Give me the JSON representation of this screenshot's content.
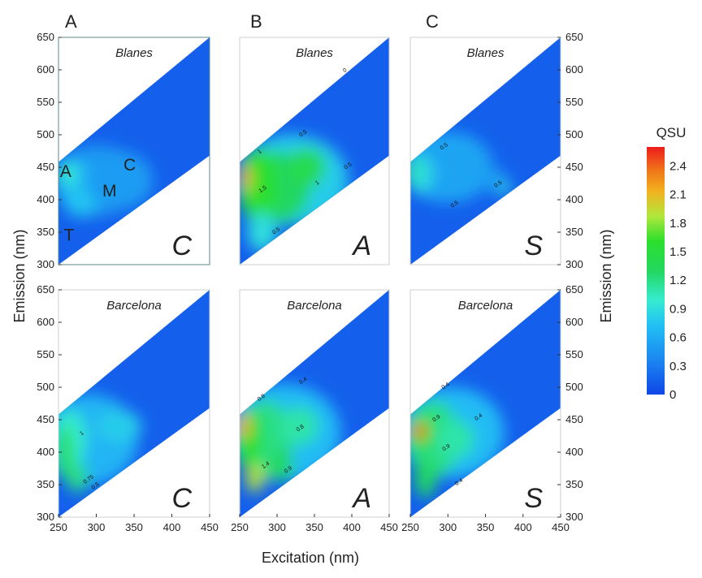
{
  "chart_data": {
    "type": "heatmap",
    "description_of_axes": {
      "xlabel": "Excitation (nm)",
      "ylabel": "Emission (nm)",
      "xlim": [
        250,
        450
      ],
      "ylim": [
        300,
        650
      ],
      "x_ticks": [
        "250",
        "300",
        "350",
        "400",
        "450"
      ],
      "y_ticks": [
        "300",
        "350",
        "400",
        "450",
        "500",
        "550",
        "600",
        "650"
      ]
    },
    "colorbar": {
      "title": "QSU",
      "range": [
        0,
        2.6
      ],
      "ticks": [
        "2.4",
        "2.1",
        "1.8",
        "1.5",
        "1.2",
        "0.9",
        "0.6",
        "0.3",
        "0"
      ]
    },
    "column_labels": [
      "A",
      "B",
      "C"
    ],
    "panels": [
      {
        "column": "A",
        "site": "Blanes",
        "stat_letter": "C",
        "peak_value": 1.0,
        "peak_labels": [
          {
            "text": "A",
            "ex": 252,
            "em": 435
          },
          {
            "text": "C",
            "ex": 336,
            "em": 445
          },
          {
            "text": "M",
            "ex": 308,
            "em": 405
          },
          {
            "text": "T",
            "ex": 257,
            "em": 337
          }
        ],
        "contour_labels": []
      },
      {
        "column": "B",
        "site": "Blanes",
        "stat_letter": "A",
        "peak_value": 2.4,
        "contour_labels": [
          {
            "text": "0",
            "ex": 392,
            "em": 597
          },
          {
            "text": "0.5",
            "ex": 336,
            "em": 500
          },
          {
            "text": "1",
            "ex": 278,
            "em": 472
          },
          {
            "text": "0.5",
            "ex": 396,
            "em": 450
          },
          {
            "text": "1.5",
            "ex": 282,
            "em": 414
          },
          {
            "text": "1",
            "ex": 355,
            "em": 424
          },
          {
            "text": "0.5",
            "ex": 300,
            "em": 350
          }
        ]
      },
      {
        "column": "C",
        "site": "Blanes",
        "stat_letter": "S",
        "peak_value": 1.2,
        "contour_labels": [
          {
            "text": "0.5",
            "ex": 296,
            "em": 480
          },
          {
            "text": "0.5",
            "ex": 368,
            "em": 422
          },
          {
            "text": "0.5",
            "ex": 310,
            "em": 391
          }
        ]
      },
      {
        "column": "A",
        "site": "Barcelona",
        "stat_letter": "C",
        "peak_value": 1.5,
        "contour_labels": [
          {
            "text": "1",
            "ex": 282,
            "em": 427
          },
          {
            "text": "0.75",
            "ex": 291,
            "em": 356
          },
          {
            "text": "0.5",
            "ex": 300,
            "em": 346
          }
        ]
      },
      {
        "column": "B",
        "site": "Barcelona",
        "stat_letter": "A",
        "peak_value": 2.2,
        "contour_labels": [
          {
            "text": "0.4",
            "ex": 336,
            "em": 508
          },
          {
            "text": "0.8",
            "ex": 280,
            "em": 482
          },
          {
            "text": "0.8",
            "ex": 332,
            "em": 435
          },
          {
            "text": "1.4",
            "ex": 286,
            "em": 378
          },
          {
            "text": "0.9",
            "ex": 316,
            "em": 371
          }
        ]
      },
      {
        "column": "C",
        "site": "Barcelona",
        "stat_letter": "S",
        "peak_value": 2.4,
        "contour_labels": [
          {
            "text": "0.4",
            "ex": 298,
            "em": 500
          },
          {
            "text": "0.9",
            "ex": 286,
            "em": 450
          },
          {
            "text": "0.4",
            "ex": 342,
            "em": 452
          },
          {
            "text": "0.9",
            "ex": 299,
            "em": 405
          },
          {
            "text": "0.4",
            "ex": 316,
            "em": 352
          }
        ]
      }
    ]
  },
  "colors": {
    "background_low": "#0f4de8",
    "colorbar_stops": [
      "#0f45e8",
      "#1a7ef0",
      "#22c0f5",
      "#36ecd0",
      "#23d760",
      "#2cdf2c",
      "#b0e83c",
      "#f2b21e",
      "#f07a1a",
      "#ee1c1c"
    ]
  }
}
